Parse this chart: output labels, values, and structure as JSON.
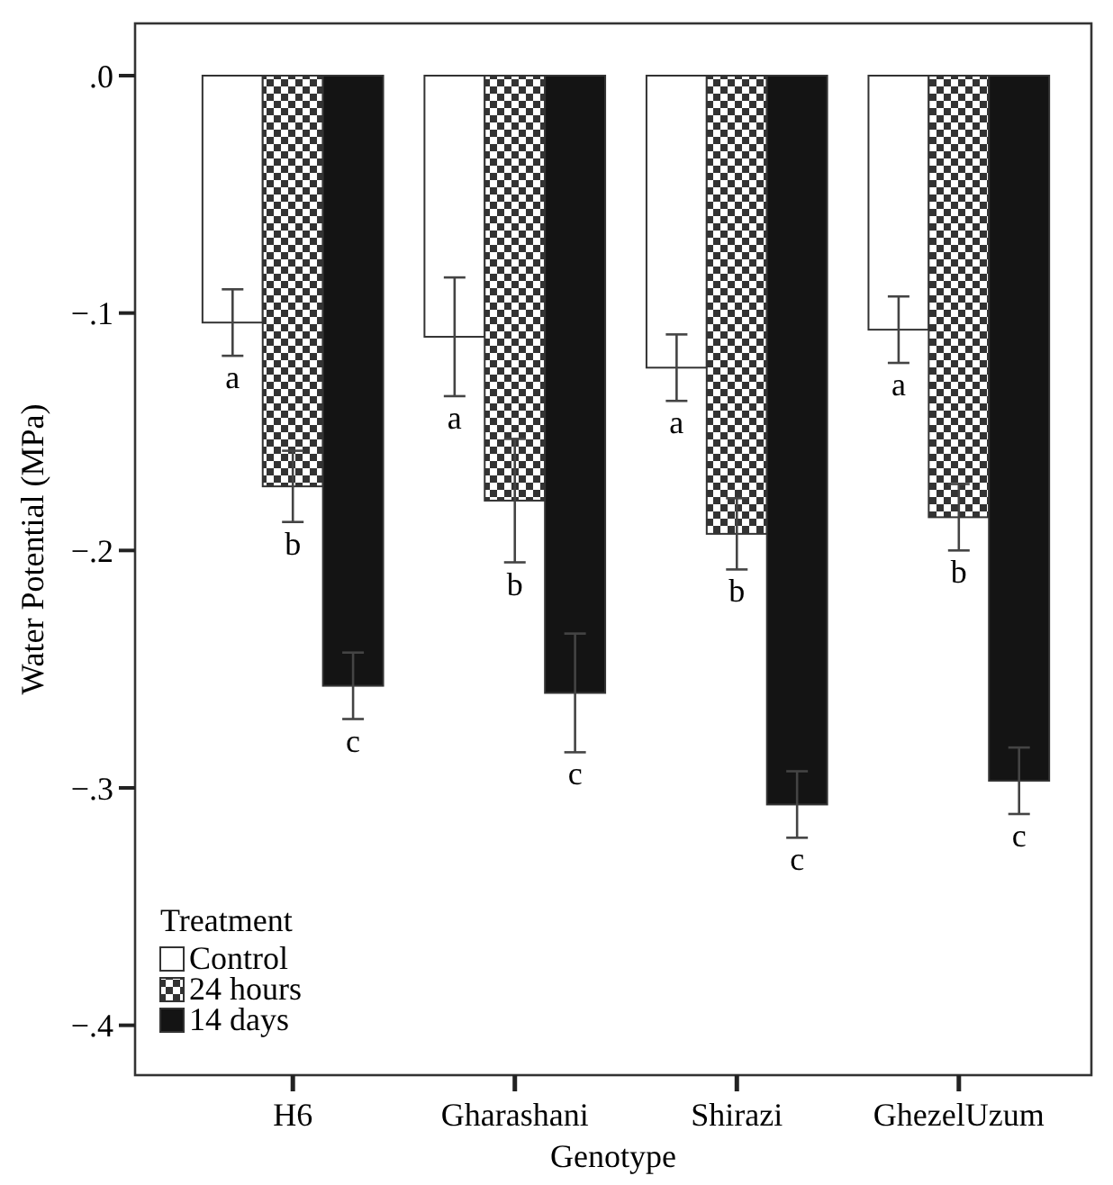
{
  "chart_data": {
    "type": "bar",
    "xlabel": "Genotype",
    "ylabel": "Water Potential (MPa)",
    "legend_title": "Treatment",
    "legend": "bottom left",
    "grid": false,
    "categories": [
      "H6",
      "Gharashani",
      "Shirazi",
      "GhezelUzum"
    ],
    "ylim": [
      -0.421,
      0.022
    ],
    "yticks": [
      {
        "value": 0,
        "label": ".0"
      },
      {
        "value": -0.1,
        "label": "−.1"
      },
      {
        "value": -0.2,
        "label": "−.2"
      },
      {
        "value": -0.3,
        "label": "−.3"
      },
      {
        "value": -0.4,
        "label": "−.4"
      }
    ],
    "series": [
      {
        "name": "Control",
        "color": "#ffffff",
        "values": [
          -0.104,
          -0.11,
          -0.123,
          -0.107
        ],
        "errors": [
          0.014,
          0.025,
          0.014,
          0.014
        ]
      },
      {
        "name": "24 hours",
        "color": "#333333",
        "values": [
          -0.173,
          -0.179,
          -0.193,
          -0.186
        ],
        "errors": [
          0.015,
          0.026,
          0.015,
          0.014
        ]
      },
      {
        "name": "14 days",
        "color": "#141414",
        "values": [
          -0.257,
          -0.26,
          -0.307,
          -0.297
        ],
        "errors": [
          0.014,
          0.025,
          0.014,
          0.014
        ]
      }
    ],
    "annotations": [
      "a",
      "b",
      "c",
      "a",
      "b",
      "c",
      "a",
      "b",
      "c",
      "a",
      "b",
      "c"
    ]
  }
}
